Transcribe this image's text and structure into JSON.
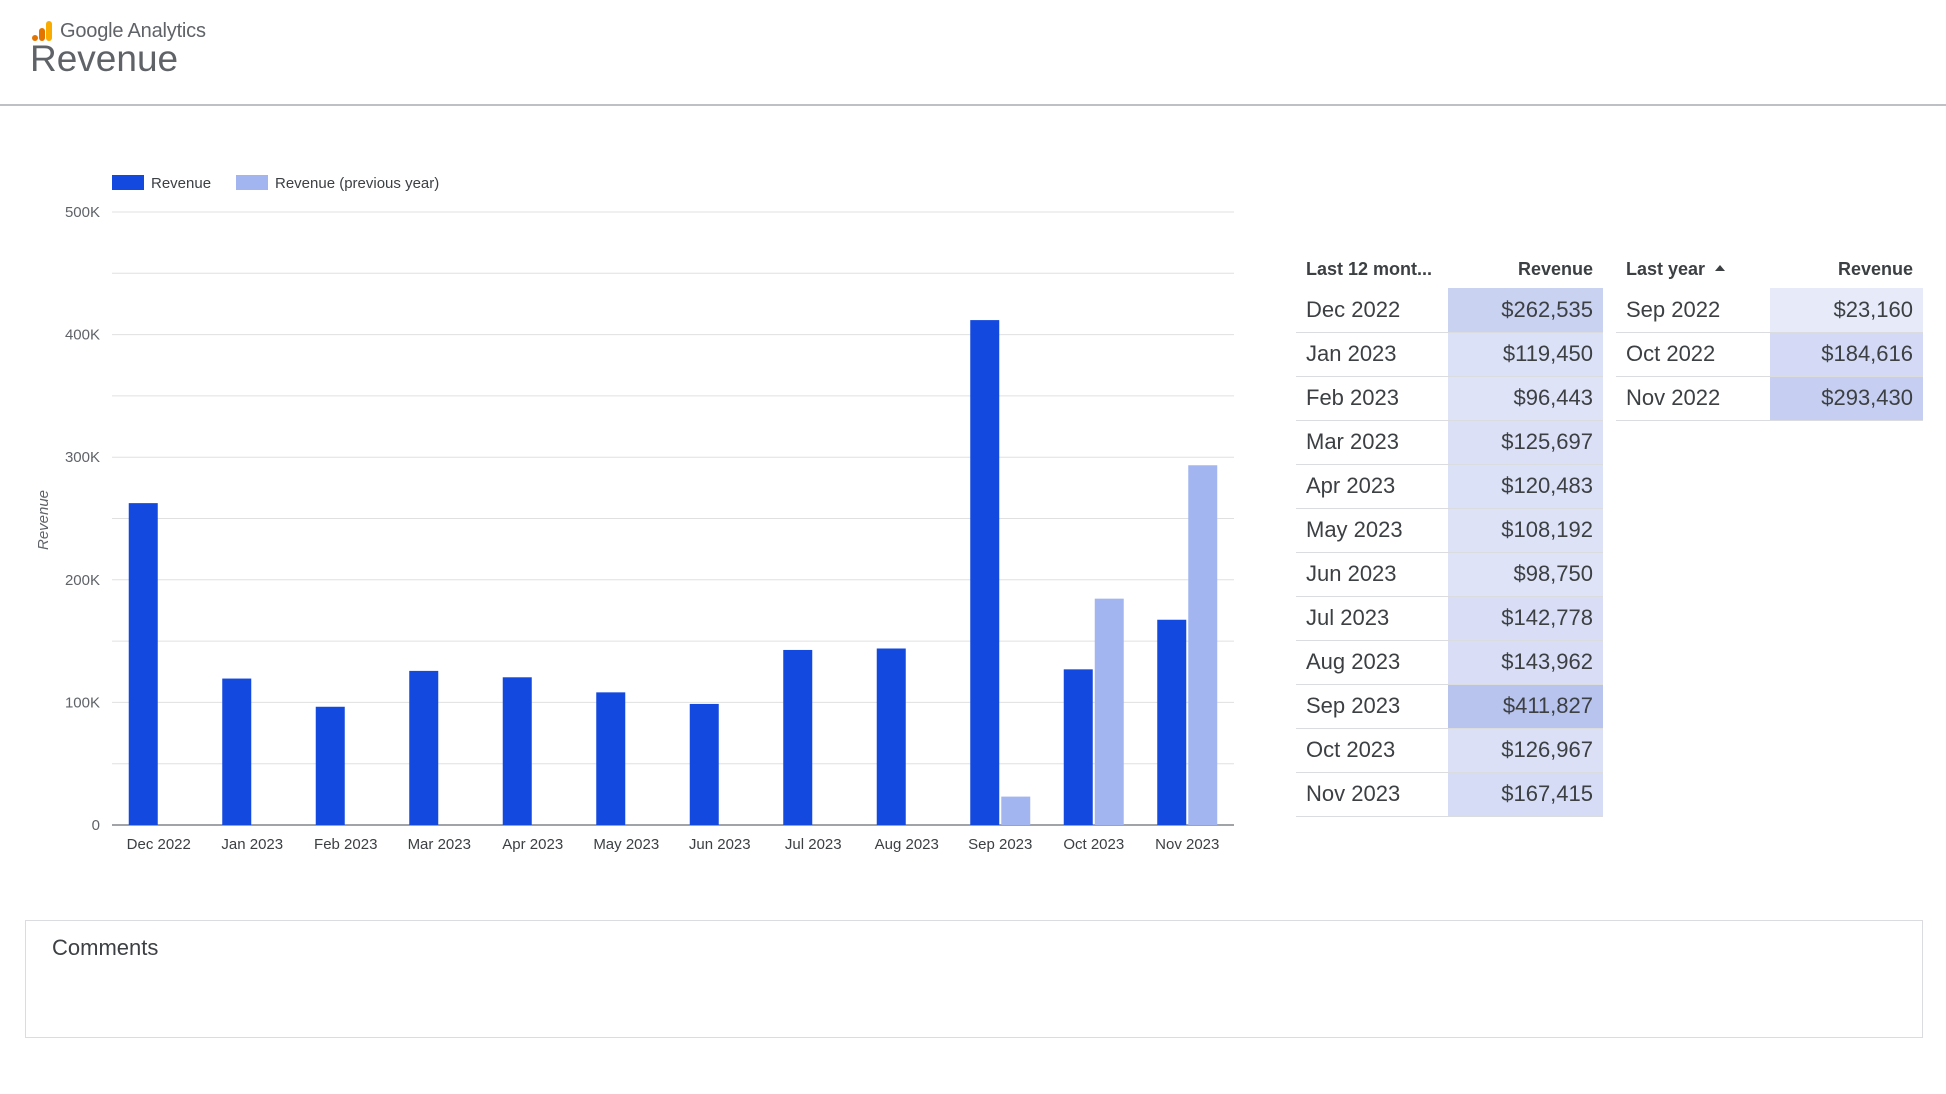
{
  "header": {
    "brand": "Google Analytics",
    "title": "Revenue"
  },
  "colors": {
    "revenue": "#1349de",
    "revenue_previous_year": "#a3b5f0",
    "heat_base": "#eaedfa",
    "heat_max": "#b8c3ee"
  },
  "chart_data": {
    "type": "bar",
    "title": "",
    "xlabel": "",
    "ylabel": "Revenue",
    "ylim": [
      0,
      500000
    ],
    "yticks": [
      0,
      100000,
      200000,
      300000,
      400000,
      500000
    ],
    "ytick_labels": [
      "0",
      "100K",
      "200K",
      "300K",
      "400K",
      "500K"
    ],
    "grid": true,
    "legend": "top-left",
    "categories": [
      "Dec 2022",
      "Jan 2023",
      "Feb 2023",
      "Mar 2023",
      "Apr 2023",
      "May 2023",
      "Jun 2023",
      "Jul 2023",
      "Aug 2023",
      "Sep 2023",
      "Oct 2023",
      "Nov 2023"
    ],
    "series": [
      {
        "name": "Revenue",
        "values": [
          262535,
          119450,
          96443,
          125697,
          120483,
          108192,
          98750,
          142778,
          143962,
          411827,
          126967,
          167415
        ]
      },
      {
        "name": "Revenue (previous year)",
        "values": [
          null,
          null,
          null,
          null,
          null,
          null,
          null,
          null,
          null,
          23160,
          184616,
          293430
        ]
      }
    ]
  },
  "tables": {
    "last12": {
      "headers": [
        "Last 12 mont...",
        "Revenue"
      ],
      "rows": [
        {
          "label": "Dec 2022",
          "value": "$262,535",
          "amount": 262535
        },
        {
          "label": "Jan 2023",
          "value": "$119,450",
          "amount": 119450
        },
        {
          "label": "Feb 2023",
          "value": "$96,443",
          "amount": 96443
        },
        {
          "label": "Mar 2023",
          "value": "$125,697",
          "amount": 125697
        },
        {
          "label": "Apr 2023",
          "value": "$120,483",
          "amount": 120483
        },
        {
          "label": "May 2023",
          "value": "$108,192",
          "amount": 108192
        },
        {
          "label": "Jun 2023",
          "value": "$98,750",
          "amount": 98750
        },
        {
          "label": "Jul 2023",
          "value": "$142,778",
          "amount": 142778
        },
        {
          "label": "Aug 2023",
          "value": "$143,962",
          "amount": 143962
        },
        {
          "label": "Sep 2023",
          "value": "$411,827",
          "amount": 411827
        },
        {
          "label": "Oct 2023",
          "value": "$126,967",
          "amount": 126967
        },
        {
          "label": "Nov 2023",
          "value": "$167,415",
          "amount": 167415
        }
      ]
    },
    "lastyear": {
      "headers": [
        "Last year",
        "Revenue"
      ],
      "sort": "ascending",
      "rows": [
        {
          "label": "Sep 2022",
          "value": "$23,160",
          "amount": 23160
        },
        {
          "label": "Oct 2022",
          "value": "$184,616",
          "amount": 184616
        },
        {
          "label": "Nov 2022",
          "value": "$293,430",
          "amount": 293430
        }
      ]
    }
  },
  "comments": {
    "title": "Comments"
  }
}
